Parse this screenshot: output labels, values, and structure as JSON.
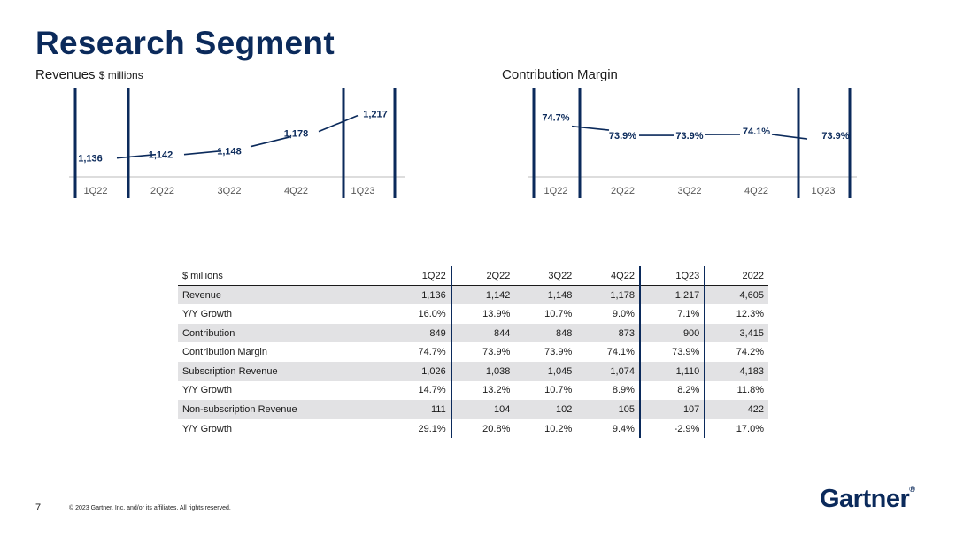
{
  "page": {
    "title": "Research Segment",
    "page_number": "7",
    "copyright": "© 2023 Gartner, Inc. and/or its affiliates. All rights reserved.",
    "logo_text": "Gartner",
    "logo_mark": "®"
  },
  "colors": {
    "brand": "#0b2a5b",
    "axis": "#bbbbbb",
    "row_shade": "#e2e2e4"
  },
  "chart_data": [
    {
      "type": "line",
      "title": "Revenues",
      "subtitle": "$ millions",
      "categories": [
        "1Q22",
        "2Q22",
        "3Q22",
        "4Q22",
        "1Q23"
      ],
      "values": [
        1136,
        1142,
        1148,
        1178,
        1217
      ],
      "labels": [
        "1,136",
        "1,142",
        "1,148",
        "1,178",
        "1,217"
      ],
      "ylim": [
        1110,
        1230
      ],
      "xlabel": "",
      "ylabel": "",
      "grid": false
    },
    {
      "type": "line",
      "title": "Contribution Margin",
      "categories": [
        "1Q22",
        "2Q22",
        "3Q22",
        "4Q22",
        "1Q23"
      ],
      "values": [
        74.7,
        73.9,
        73.9,
        74.1,
        73.9
      ],
      "labels": [
        "74.7%",
        "73.9%",
        "73.9%",
        "74.1%",
        "73.9%"
      ],
      "ylim": [
        73.0,
        75.2
      ],
      "xlabel": "",
      "ylabel": "",
      "grid": false
    }
  ],
  "table": {
    "header": [
      "$ millions",
      "1Q22",
      "2Q22",
      "3Q22",
      "4Q22",
      "1Q23",
      "2022"
    ],
    "rows": [
      [
        "Revenue",
        "1,136",
        "1,142",
        "1,148",
        "1,178",
        "1,217",
        "4,605"
      ],
      [
        "Y/Y Growth",
        "16.0%",
        "13.9%",
        "10.7%",
        "9.0%",
        "7.1%",
        "12.3%"
      ],
      [
        "Contribution",
        "849",
        "844",
        "848",
        "873",
        "900",
        "3,415"
      ],
      [
        "Contribution Margin",
        "74.7%",
        "73.9%",
        "73.9%",
        "74.1%",
        "73.9%",
        "74.2%"
      ],
      [
        "Subscription Revenue",
        "1,026",
        "1,038",
        "1,045",
        "1,074",
        "1,110",
        "4,183"
      ],
      [
        "Y/Y Growth",
        "14.7%",
        "13.2%",
        "10.7%",
        "8.9%",
        "8.2%",
        "11.8%"
      ],
      [
        "Non-subscription Revenue",
        "111",
        "104",
        "102",
        "105",
        "107",
        "422"
      ],
      [
        "Y/Y Growth",
        "29.1%",
        "20.8%",
        "10.2%",
        "9.4%",
        "-2.9%",
        "17.0%"
      ]
    ]
  }
}
